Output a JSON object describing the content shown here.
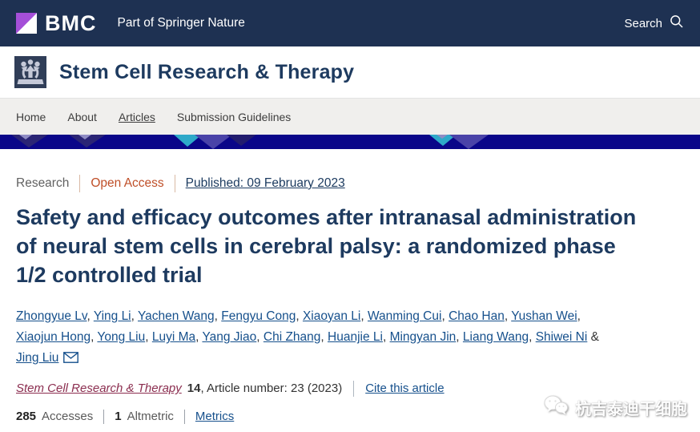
{
  "palette": {
    "topbar_bg": "#1e3152",
    "bmc_purple": "#a44fd8",
    "journal_navy": "#1d3a5f",
    "nav_bg": "#f0efed",
    "banner_bg": "#0a0689",
    "banner_teal": "#2ea9c9",
    "banner_purple": "#4a43a8",
    "banner_navy_light": "#2a2475",
    "banner_lavender": "#8f8cc4",
    "open_access_orange": "#bf4e27",
    "link_blue": "#16508c",
    "visited_maroon": "#8b2d4f"
  },
  "topbar": {
    "logo_text": "BMC",
    "tagline": "Part of Springer Nature",
    "search_label": "Search"
  },
  "journal": {
    "title": "Stem Cell Research & Therapy"
  },
  "nav": {
    "items": [
      {
        "label": "Home",
        "active": false
      },
      {
        "label": "About",
        "active": false
      },
      {
        "label": "Articles",
        "active": true
      },
      {
        "label": "Submission Guidelines",
        "active": false
      }
    ]
  },
  "article": {
    "type_label": "Research",
    "access_label": "Open Access",
    "published_label": "Published: 09 February 2023",
    "title": "Safety and efficacy outcomes after intranasal administration of neural stem cells in cerebral palsy: a randomized phase 1/2 controlled trial",
    "authors": [
      "Zhongyue Lv",
      "Ying Li",
      "Yachen Wang",
      "Fengyu Cong",
      "Xiaoyan Li",
      "Wanming Cui",
      "Chao Han",
      "Yushan Wei",
      "Xiaojun Hong",
      "Yong Liu",
      "Luyi Ma",
      "Yang Jiao",
      "Chi Zhang",
      "Huanjie Li",
      "Mingyan Jin",
      "Liang Wang",
      "Shiwei Ni",
      "Jing Liu"
    ],
    "citation": {
      "journal": "Stem Cell Research & Therapy",
      "volume": "14",
      "rest": ", Article number: 23 (2023)",
      "cite_link": "Cite this article"
    },
    "metrics": {
      "accesses_value": "285",
      "accesses_label": "Accesses",
      "altmetric_value": "1",
      "altmetric_label": "Altmetric",
      "metrics_link": "Metrics"
    }
  },
  "watermark": {
    "text": "杭吉泰迪干细胞"
  }
}
